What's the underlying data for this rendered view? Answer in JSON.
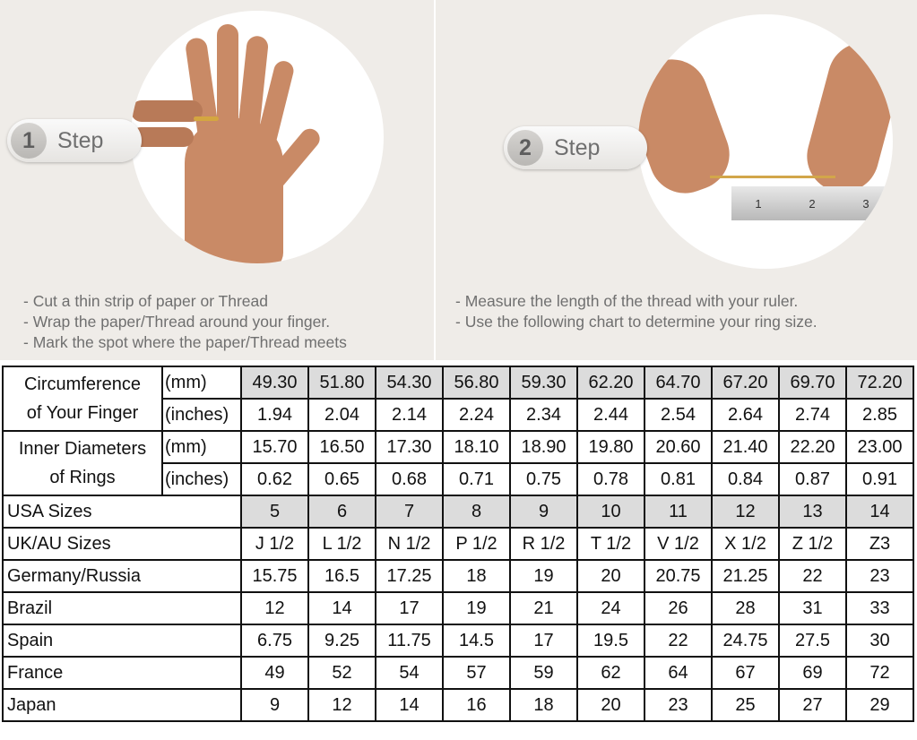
{
  "steps": [
    {
      "number": "1",
      "label": "Step",
      "instructions": [
        "- Cut a thin strip of paper or Thread",
        "- Wrap the paper/Thread around your finger.",
        "- Mark the spot where the paper/Thread meets"
      ]
    },
    {
      "number": "2",
      "label": "Step",
      "instructions": [
        "- Measure the length of the thread with your ruler.",
        "- Use the following chart to determine your ring size."
      ]
    }
  ],
  "ruler": {
    "marks": [
      "1",
      "2",
      "3"
    ]
  },
  "table": {
    "circumference": {
      "label_line1": "Circumference",
      "label_line2": "of Your Finger",
      "unit_mm": "(mm)",
      "unit_in": "(inches)",
      "mm": [
        "49.30",
        "51.80",
        "54.30",
        "56.80",
        "59.30",
        "62.20",
        "64.70",
        "67.20",
        "69.70",
        "72.20"
      ],
      "inches": [
        "1.94",
        "2.04",
        "2.14",
        "2.24",
        "2.34",
        "2.44",
        "2.54",
        "2.64",
        "2.74",
        "2.85"
      ]
    },
    "diameter": {
      "label_line1": "Inner Diameters",
      "label_line2": "of Rings",
      "unit_mm": "(mm)",
      "unit_in": "(inches)",
      "mm": [
        "15.70",
        "16.50",
        "17.30",
        "18.10",
        "18.90",
        "19.80",
        "20.60",
        "21.40",
        "22.20",
        "23.00"
      ],
      "inches": [
        "0.62",
        "0.65",
        "0.68",
        "0.71",
        "0.75",
        "0.78",
        "0.81",
        "0.84",
        "0.87",
        "0.91"
      ]
    },
    "rows": [
      {
        "label": "USA Sizes",
        "values": [
          "5",
          "6",
          "7",
          "8",
          "9",
          "10",
          "11",
          "12",
          "13",
          "14"
        ]
      },
      {
        "label": "UK/AU Sizes",
        "values": [
          "J 1/2",
          "L 1/2",
          "N 1/2",
          "P 1/2",
          "R 1/2",
          "T 1/2",
          "V 1/2",
          "X 1/2",
          "Z 1/2",
          "Z3"
        ]
      },
      {
        "label": "Germany/Russia",
        "values": [
          "15.75",
          "16.5",
          "17.25",
          "18",
          "19",
          "20",
          "20.75",
          "21.25",
          "22",
          "23"
        ]
      },
      {
        "label": "Brazil",
        "values": [
          "12",
          "14",
          "17",
          "19",
          "21",
          "24",
          "26",
          "28",
          "31",
          "33"
        ]
      },
      {
        "label": "Spain",
        "values": [
          "6.75",
          "9.25",
          "11.75",
          "14.5",
          "17",
          "19.5",
          "22",
          "24.75",
          "27.5",
          "30"
        ]
      },
      {
        "label": "France",
        "values": [
          "49",
          "52",
          "54",
          "57",
          "59",
          "62",
          "64",
          "67",
          "69",
          "72"
        ]
      },
      {
        "label": "Japan",
        "values": [
          "9",
          "12",
          "14",
          "16",
          "18",
          "20",
          "23",
          "25",
          "27",
          "29"
        ]
      }
    ]
  }
}
